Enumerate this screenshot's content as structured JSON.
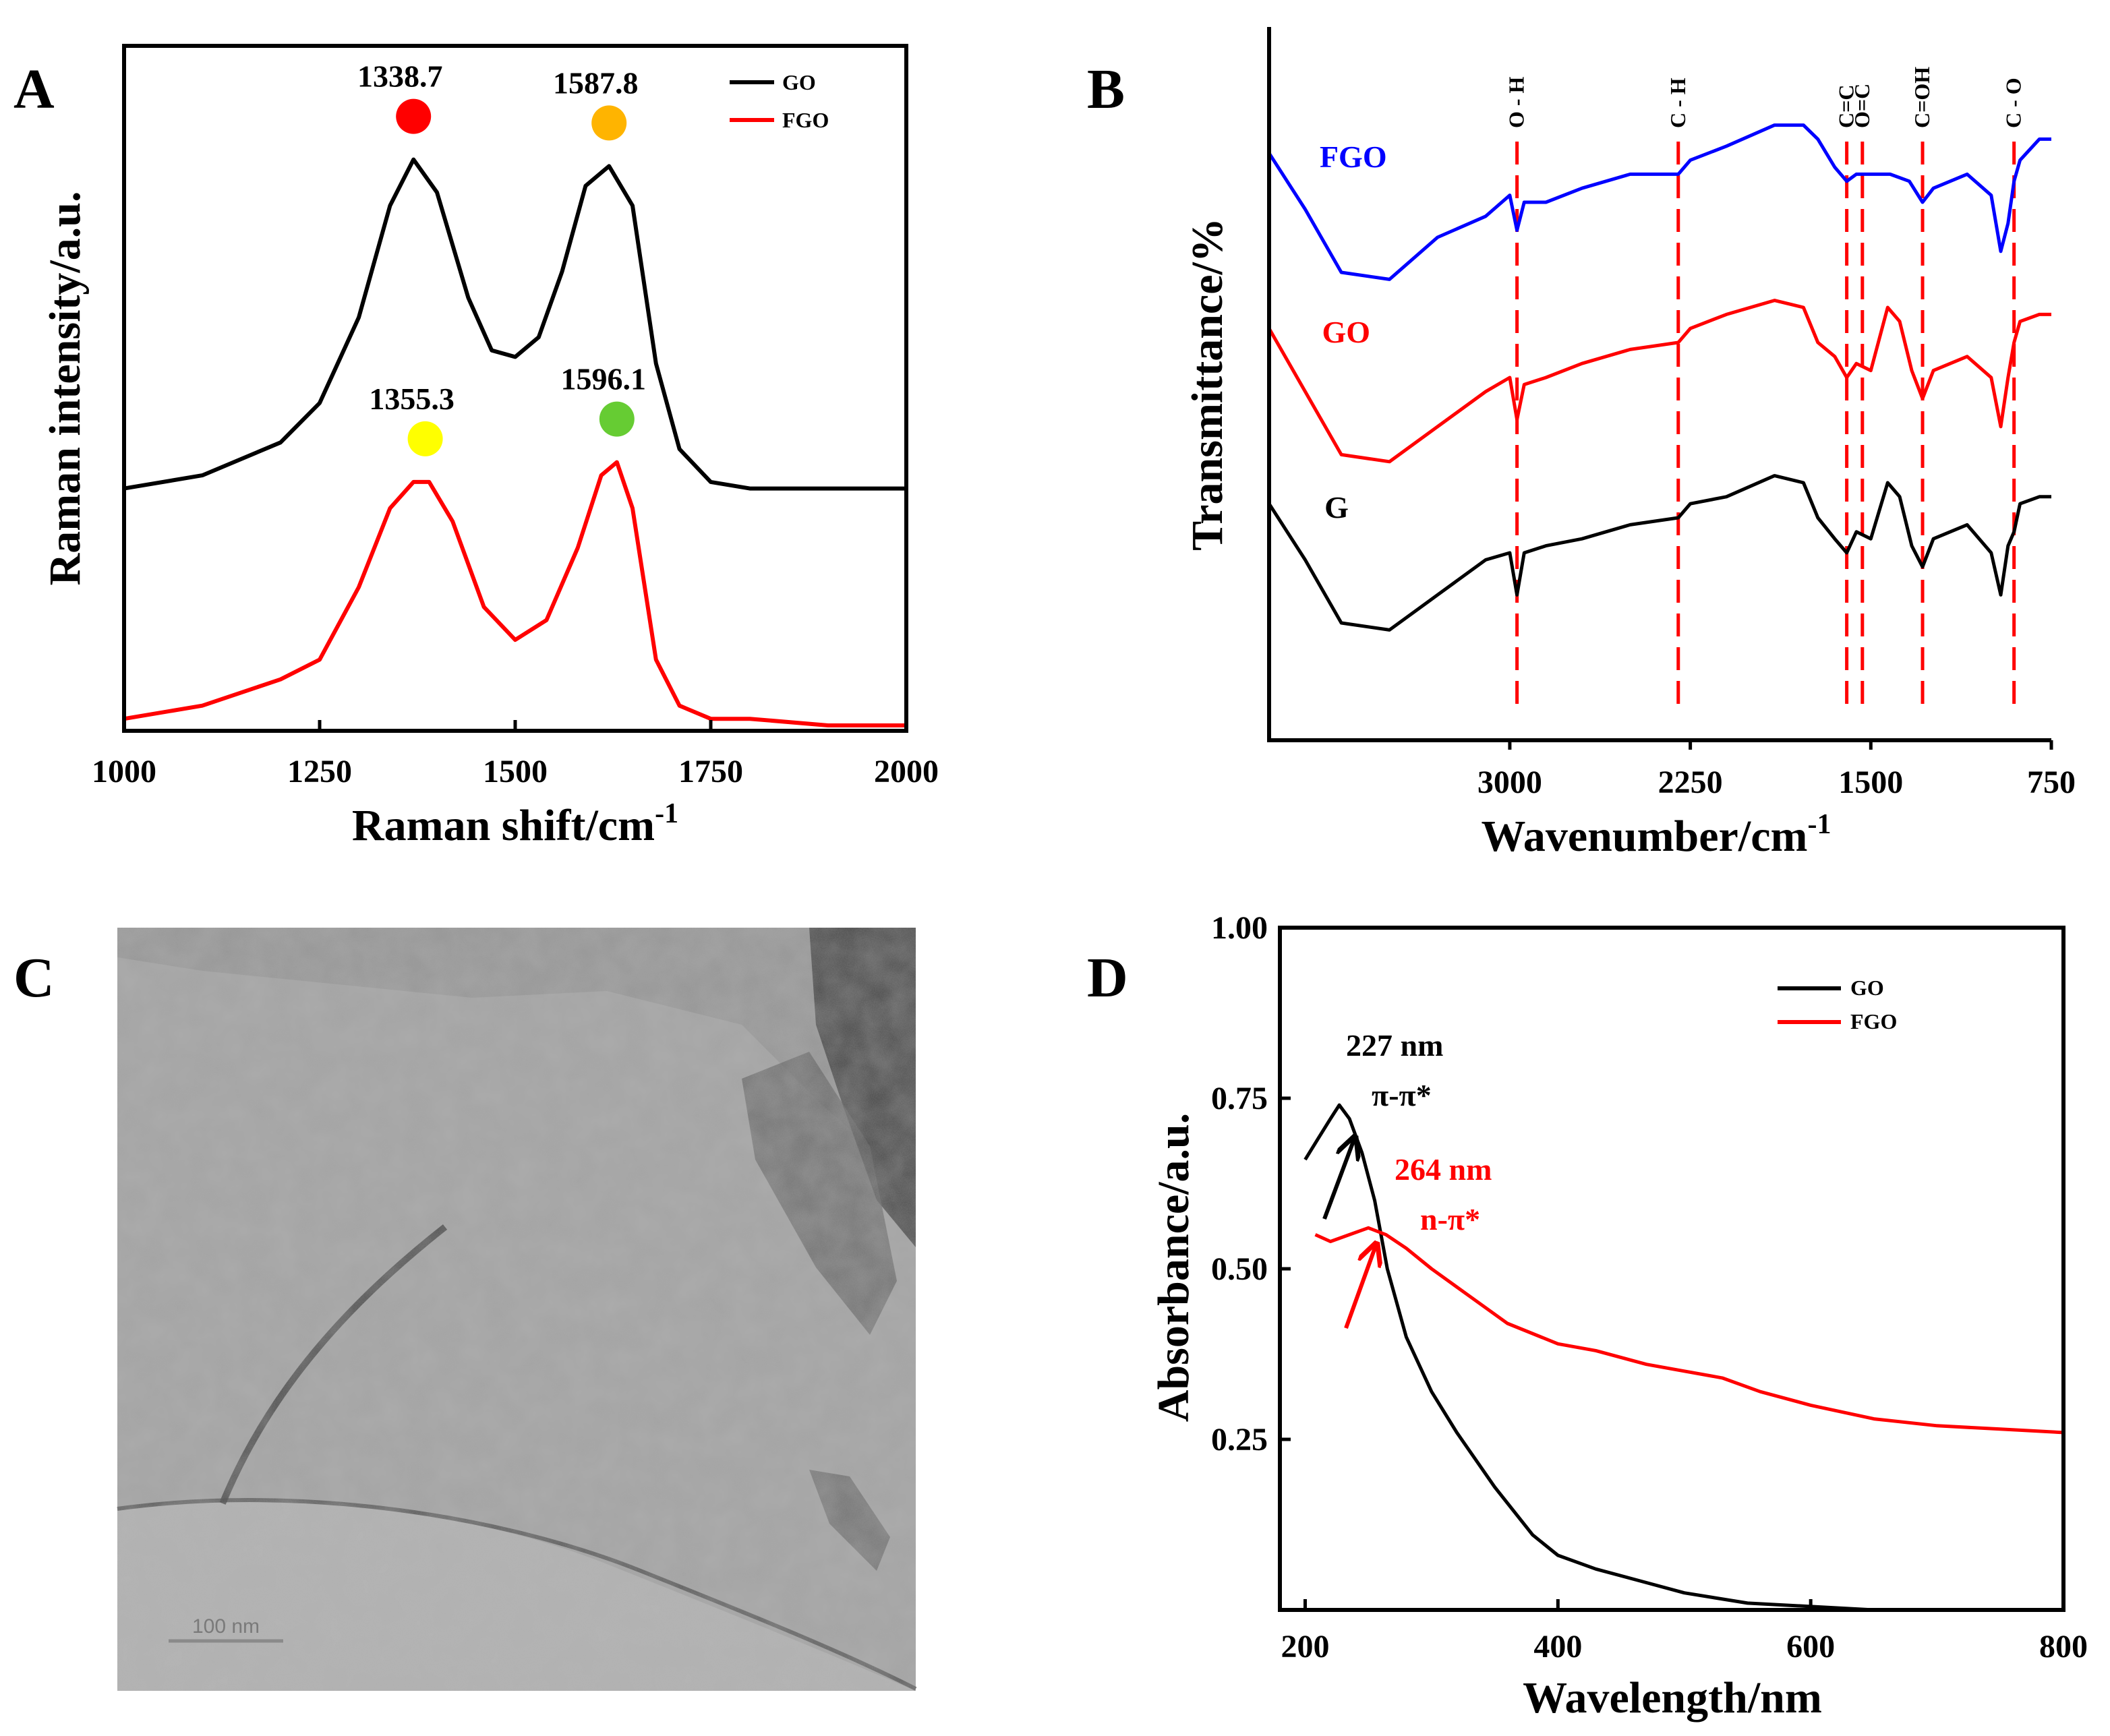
{
  "panels": {
    "A": {
      "letter": "A"
    },
    "B": {
      "letter": "B"
    },
    "C": {
      "letter": "C",
      "scale_bar_label": "100 nm"
    },
    "D": {
      "letter": "D"
    }
  },
  "chart_data": [
    {
      "id": "A",
      "type": "line",
      "title": "",
      "xlabel": "Raman shift/cm",
      "xlabel_sup": "-1",
      "ylabel": "Raman intensity/a.u.",
      "xlim": [
        1000,
        2000
      ],
      "ylim": [
        0,
        1
      ],
      "xticks": [
        1000,
        1250,
        1500,
        1750,
        2000
      ],
      "legend": {
        "position": "top-right",
        "entries": [
          {
            "name": "GO",
            "color": "#000000"
          },
          {
            "name": "FGO",
            "color": "#ff0000"
          }
        ]
      },
      "series": [
        {
          "name": "GO",
          "color": "#000000",
          "x": [
            1000,
            1100,
            1200,
            1250,
            1300,
            1340,
            1370,
            1400,
            1440,
            1470,
            1500,
            1530,
            1560,
            1590,
            1620,
            1650,
            1680,
            1710,
            1750,
            1800,
            1900,
            2000
          ],
          "y": [
            0.36,
            0.38,
            0.43,
            0.49,
            0.62,
            0.79,
            0.86,
            0.81,
            0.65,
            0.57,
            0.56,
            0.59,
            0.69,
            0.82,
            0.85,
            0.79,
            0.55,
            0.42,
            0.37,
            0.36,
            0.36,
            0.36
          ]
        },
        {
          "name": "FGO",
          "color": "#ff0000",
          "x": [
            1000,
            1100,
            1200,
            1250,
            1300,
            1340,
            1370,
            1390,
            1420,
            1460,
            1500,
            1540,
            1580,
            1610,
            1630,
            1650,
            1680,
            1710,
            1750,
            1800,
            1900,
            2000
          ],
          "y": [
            0.01,
            0.03,
            0.07,
            0.1,
            0.21,
            0.33,
            0.37,
            0.37,
            0.31,
            0.18,
            0.13,
            0.16,
            0.27,
            0.38,
            0.4,
            0.33,
            0.1,
            0.03,
            0.01,
            0.01,
            0.0,
            0.0
          ]
        }
      ],
      "annotations": [
        {
          "text": "1338.7",
          "x": 1370,
          "y": 0.86,
          "dot": "#ff0000"
        },
        {
          "text": "1587.8",
          "x": 1620,
          "y": 0.85,
          "dot": "#ffb400"
        },
        {
          "text": "1355.3",
          "x": 1385,
          "y": 0.37,
          "dot": "#ffff00"
        },
        {
          "text": "1596.1",
          "x": 1630,
          "y": 0.4,
          "dot": "#66cc33"
        }
      ]
    },
    {
      "id": "B",
      "type": "line",
      "title": "",
      "xlabel": "Wavenumber/cm",
      "xlabel_sup": "-1",
      "ylabel": "Transmittance/%",
      "xlim": [
        4000,
        750
      ],
      "ylim": [
        0,
        1
      ],
      "xticks": [
        3000,
        2250,
        1500,
        750
      ],
      "bond_lines": [
        {
          "label": "O - H",
          "x": 2970
        },
        {
          "label": "C - H",
          "x": 2300
        },
        {
          "label": "C=C",
          "x": 1600
        },
        {
          "label": "O=C",
          "x": 1535
        },
        {
          "label": "C=OH",
          "x": 1285
        },
        {
          "label": "C - O",
          "x": 905
        }
      ],
      "series": [
        {
          "name": "FGO",
          "color": "#0000ff",
          "x": [
            4000,
            3850,
            3700,
            3500,
            3300,
            3100,
            3000,
            2970,
            2940,
            2850,
            2700,
            2500,
            2300,
            2250,
            2100,
            1900,
            1780,
            1720,
            1650,
            1600,
            1560,
            1500,
            1420,
            1340,
            1285,
            1240,
            1100,
            1000,
            960,
            930,
            905,
            880,
            800,
            750
          ],
          "y": [
            0.82,
            0.74,
            0.65,
            0.64,
            0.7,
            0.73,
            0.76,
            0.71,
            0.75,
            0.75,
            0.77,
            0.79,
            0.79,
            0.81,
            0.83,
            0.86,
            0.86,
            0.84,
            0.8,
            0.78,
            0.79,
            0.79,
            0.79,
            0.78,
            0.75,
            0.77,
            0.79,
            0.76,
            0.68,
            0.72,
            0.78,
            0.81,
            0.84,
            0.84
          ]
        },
        {
          "name": "GO",
          "color": "#ff0000",
          "x": [
            4000,
            3850,
            3700,
            3500,
            3300,
            3100,
            3000,
            2970,
            2940,
            2850,
            2700,
            2500,
            2300,
            2250,
            2100,
            1900,
            1780,
            1720,
            1650,
            1600,
            1560,
            1500,
            1430,
            1380,
            1330,
            1285,
            1240,
            1100,
            1000,
            960,
            930,
            905,
            880,
            800,
            750
          ],
          "y": [
            0.57,
            0.48,
            0.39,
            0.38,
            0.43,
            0.48,
            0.5,
            0.44,
            0.49,
            0.5,
            0.52,
            0.54,
            0.55,
            0.57,
            0.59,
            0.61,
            0.6,
            0.55,
            0.53,
            0.5,
            0.52,
            0.51,
            0.6,
            0.58,
            0.51,
            0.47,
            0.51,
            0.53,
            0.5,
            0.43,
            0.5,
            0.55,
            0.58,
            0.59,
            0.59
          ]
        },
        {
          "name": "G",
          "color": "#000000",
          "x": [
            4000,
            3850,
            3700,
            3500,
            3300,
            3100,
            3000,
            2970,
            2940,
            2850,
            2700,
            2500,
            2300,
            2250,
            2100,
            1900,
            1780,
            1720,
            1650,
            1600,
            1560,
            1500,
            1430,
            1380,
            1330,
            1285,
            1240,
            1100,
            1000,
            960,
            930,
            905,
            880,
            800,
            750
          ],
          "y": [
            0.32,
            0.24,
            0.15,
            0.14,
            0.19,
            0.24,
            0.25,
            0.19,
            0.25,
            0.26,
            0.27,
            0.29,
            0.3,
            0.32,
            0.33,
            0.36,
            0.35,
            0.3,
            0.27,
            0.25,
            0.28,
            0.27,
            0.35,
            0.33,
            0.26,
            0.23,
            0.27,
            0.29,
            0.25,
            0.19,
            0.26,
            0.28,
            0.32,
            0.33,
            0.33
          ]
        }
      ],
      "curve_labels": [
        {
          "text": "FGO",
          "color": "#0000ff",
          "x": 3790,
          "y": 0.8
        },
        {
          "text": "GO",
          "color": "#ff0000",
          "x": 3780,
          "y": 0.55
        },
        {
          "text": "G",
          "color": "#000000",
          "x": 3770,
          "y": 0.3
        }
      ]
    },
    {
      "id": "D",
      "type": "line",
      "title": "",
      "xlabel": "Wavelength/nm",
      "ylabel": "Absorbance/a.u.",
      "xlim": [
        180,
        800
      ],
      "ylim": [
        0,
        1.0
      ],
      "xticks": [
        200,
        400,
        600,
        800
      ],
      "yticks": [
        0.25,
        0.5,
        0.75,
        1.0
      ],
      "ytick_labels": [
        "0.25",
        "0.50",
        "0.75",
        "1.00"
      ],
      "legend": {
        "position": "top-right",
        "entries": [
          {
            "name": "GO",
            "color": "#000000"
          },
          {
            "name": "FGO",
            "color": "#ff0000"
          }
        ]
      },
      "series": [
        {
          "name": "GO",
          "color": "#000000",
          "x": [
            200,
            210,
            220,
            227,
            235,
            245,
            255,
            265,
            280,
            300,
            320,
            350,
            380,
            400,
            430,
            470,
            500,
            550,
            600,
            650
          ],
          "y": [
            0.66,
            0.69,
            0.72,
            0.74,
            0.72,
            0.67,
            0.6,
            0.5,
            0.4,
            0.32,
            0.26,
            0.18,
            0.11,
            0.08,
            0.06,
            0.04,
            0.025,
            0.01,
            0.005,
            0.0
          ]
        },
        {
          "name": "FGO",
          "color": "#ff0000",
          "x": [
            208,
            220,
            235,
            250,
            264,
            280,
            300,
            330,
            360,
            400,
            430,
            470,
            500,
            530,
            560,
            600,
            650,
            700,
            750,
            800
          ],
          "y": [
            0.55,
            0.54,
            0.55,
            0.56,
            0.55,
            0.53,
            0.5,
            0.46,
            0.42,
            0.39,
            0.38,
            0.36,
            0.35,
            0.34,
            0.32,
            0.3,
            0.28,
            0.27,
            0.265,
            0.26
          ]
        }
      ],
      "annotations": [
        {
          "text": "227 nm",
          "sub": "π-π*",
          "color": "#000000"
        },
        {
          "text": "264 nm",
          "sub": "n-π*",
          "color": "#ff0000"
        }
      ]
    }
  ]
}
